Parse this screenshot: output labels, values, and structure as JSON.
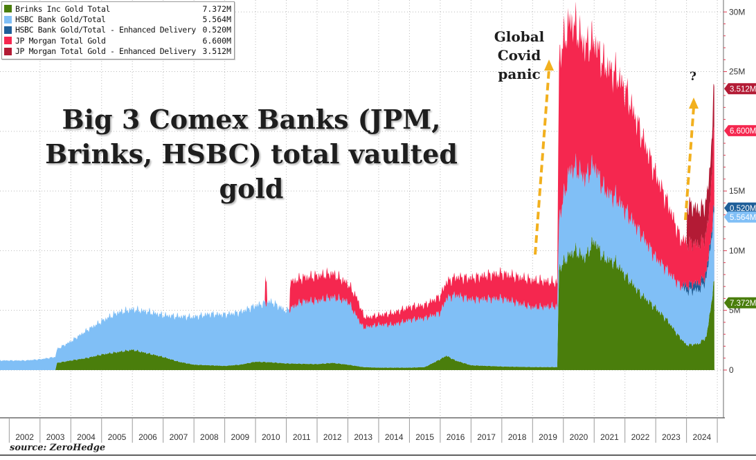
{
  "chart_data": {
    "type": "area",
    "title": "Big 3 Comex Banks (JPM, Brinks, HSBC) total vaulted gold",
    "source": "source: ZeroHedge",
    "stacked": true,
    "x_unit": "year",
    "x_range": [
      2001.7,
      2025.2
    ],
    "ylim": [
      -4000000,
      31000000
    ],
    "grid": true,
    "legend_placement": "top-left",
    "x_tick_labels": [
      "2002",
      "2003",
      "2004",
      "2005",
      "2006",
      "2007",
      "2008",
      "2009",
      "2010",
      "2011",
      "2012",
      "2013",
      "2014",
      "2015",
      "2016",
      "2017",
      "2018",
      "2019",
      "2020",
      "2021",
      "2022",
      "2023",
      "2024"
    ],
    "y_ticks": [
      {
        "value": 0,
        "label": "0"
      },
      {
        "value": 5000000,
        "label": "5M"
      },
      {
        "value": 10000000,
        "label": "10M"
      },
      {
        "value": 15000000,
        "label": "15M"
      },
      {
        "value": 25000000,
        "label": "25M"
      },
      {
        "value": 30000000,
        "label": "30M"
      }
    ],
    "series": [
      {
        "name": "Brinks Inc Gold Total",
        "latest_label": "7.372M",
        "latest_value": 7372000,
        "color": "#4a7e0c",
        "points": [
          [
            2003.5,
            0
          ],
          [
            2003.55,
            600000
          ],
          [
            2004,
            800000
          ],
          [
            2004.5,
            1000000
          ],
          [
            2005,
            1300000
          ],
          [
            2005.5,
            1500000
          ],
          [
            2006,
            1700000
          ],
          [
            2006.5,
            1400000
          ],
          [
            2007,
            1100000
          ],
          [
            2007.5,
            700000
          ],
          [
            2008,
            450000
          ],
          [
            2009,
            350000
          ],
          [
            2009.5,
            450000
          ],
          [
            2010,
            700000
          ],
          [
            2010.5,
            650000
          ],
          [
            2011,
            550000
          ],
          [
            2012,
            500000
          ],
          [
            2012.5,
            600000
          ],
          [
            2013,
            450000
          ],
          [
            2013.5,
            250000
          ],
          [
            2014,
            200000
          ],
          [
            2015,
            200000
          ],
          [
            2015.5,
            250000
          ],
          [
            2016,
            900000
          ],
          [
            2016.2,
            1200000
          ],
          [
            2016.5,
            800000
          ],
          [
            2017,
            400000
          ],
          [
            2018,
            300000
          ],
          [
            2019,
            250000
          ],
          [
            2019.8,
            250000
          ],
          [
            2019.86,
            8500000
          ],
          [
            2020.2,
            9700000
          ],
          [
            2020.4,
            10000000
          ],
          [
            2020.7,
            9400000
          ],
          [
            2021,
            10900000
          ],
          [
            2021.3,
            9400000
          ],
          [
            2021.7,
            9000000
          ],
          [
            2022,
            8000000
          ],
          [
            2022.5,
            6400000
          ],
          [
            2023,
            5200000
          ],
          [
            2023.4,
            4100000
          ],
          [
            2023.7,
            3000000
          ],
          [
            2024,
            2100000
          ],
          [
            2024.4,
            2200000
          ],
          [
            2024.65,
            2800000
          ],
          [
            2024.9,
            7372000
          ]
        ]
      },
      {
        "name": "HSBC Bank Gold/Total",
        "latest_label": "5.564M",
        "latest_value": 5564000,
        "color": "#80bff6",
        "points": [
          [
            2001.7,
            800000
          ],
          [
            2002.5,
            800000
          ],
          [
            2003,
            900000
          ],
          [
            2003.5,
            1100000
          ],
          [
            2004,
            1600000
          ],
          [
            2004.5,
            2300000
          ],
          [
            2005,
            2800000
          ],
          [
            2005.5,
            3300000
          ],
          [
            2006,
            3400000
          ],
          [
            2006.5,
            3500000
          ],
          [
            2007,
            3500000
          ],
          [
            2007.5,
            3800000
          ],
          [
            2008,
            4000000
          ],
          [
            2008.5,
            4300000
          ],
          [
            2009,
            4300000
          ],
          [
            2009.5,
            4400000
          ],
          [
            2010,
            4700000
          ],
          [
            2010.5,
            5100000
          ],
          [
            2011,
            4400000
          ],
          [
            2011.5,
            5200000
          ],
          [
            2012,
            5300000
          ],
          [
            2012.5,
            5500000
          ],
          [
            2013,
            5300000
          ],
          [
            2013.5,
            3300000
          ],
          [
            2014,
            3600000
          ],
          [
            2014.5,
            3600000
          ],
          [
            2015,
            4000000
          ],
          [
            2015.5,
            4100000
          ],
          [
            2016,
            3900000
          ],
          [
            2016.2,
            4800000
          ],
          [
            2016.5,
            5500000
          ],
          [
            2017,
            5500000
          ],
          [
            2018,
            5700000
          ],
          [
            2019,
            5000000
          ],
          [
            2019.8,
            5100000
          ],
          [
            2019.86,
            4200000
          ],
          [
            2020.2,
            7000000
          ],
          [
            2020.5,
            6900000
          ],
          [
            2021,
            6300000
          ],
          [
            2021.5,
            5500000
          ],
          [
            2022,
            5400000
          ],
          [
            2022.5,
            5100000
          ],
          [
            2023,
            4200000
          ],
          [
            2023.5,
            4200000
          ],
          [
            2024,
            4500000
          ],
          [
            2024.5,
            4500000
          ],
          [
            2024.9,
            5564000
          ]
        ]
      },
      {
        "name": "HSBC Bank Gold/Total - Enhanced Delivery",
        "latest_label": "0.520M",
        "latest_value": 520000,
        "color": "#1f5f99",
        "points": [
          [
            2023.85,
            0
          ],
          [
            2023.9,
            350000
          ],
          [
            2024.2,
            600000
          ],
          [
            2024.5,
            550000
          ],
          [
            2024.9,
            520000
          ]
        ]
      },
      {
        "name": "JP Morgan Total Gold",
        "latest_label": "6.600M",
        "latest_value": 6600000,
        "color": "#f5274f",
        "points": [
          [
            2010.3,
            0
          ],
          [
            2010.32,
            2200000
          ],
          [
            2010.36,
            2200000
          ],
          [
            2010.38,
            0
          ],
          [
            2011.1,
            0
          ],
          [
            2011.12,
            2200000
          ],
          [
            2011.5,
            2000000
          ],
          [
            2012,
            2100000
          ],
          [
            2012.5,
            2000000
          ],
          [
            2013,
            1500000
          ],
          [
            2013.3,
            1600000
          ],
          [
            2013.6,
            800000
          ],
          [
            2014,
            800000
          ],
          [
            2014.5,
            1000000
          ],
          [
            2015,
            1100000
          ],
          [
            2015.5,
            1100000
          ],
          [
            2016,
            1400000
          ],
          [
            2016.3,
            1400000
          ],
          [
            2016.5,
            1500000
          ],
          [
            2017,
            1800000
          ],
          [
            2017.5,
            2000000
          ],
          [
            2018,
            2100000
          ],
          [
            2018.5,
            2200000
          ],
          [
            2019,
            2300000
          ],
          [
            2019.8,
            2000000
          ],
          [
            2019.86,
            13500000
          ],
          [
            2020.2,
            12500000
          ],
          [
            2020.5,
            11500000
          ],
          [
            2021,
            10400000
          ],
          [
            2021.5,
            10500000
          ],
          [
            2022,
            10200000
          ],
          [
            2022.5,
            8500000
          ],
          [
            2023,
            7000000
          ],
          [
            2023.5,
            5300000
          ],
          [
            2023.8,
            4000000
          ],
          [
            2024,
            3600000
          ],
          [
            2024.3,
            3300000
          ],
          [
            2024.6,
            3200000
          ],
          [
            2024.75,
            3300000
          ],
          [
            2024.9,
            6600000
          ]
        ]
      },
      {
        "name": "JP Morgan Total Gold - Enhanced Delivery",
        "latest_label": "3.512M",
        "latest_value": 3512000,
        "color": "#b31b35",
        "points": [
          [
            2024.0,
            0
          ],
          [
            2024.02,
            3200000
          ],
          [
            2024.3,
            3000000
          ],
          [
            2024.6,
            2700000
          ],
          [
            2024.8,
            3000000
          ],
          [
            2024.9,
            3512000
          ]
        ]
      }
    ],
    "annotations": [
      {
        "text_lines": [
          "Global",
          "Covid",
          "panic"
        ]
      },
      {
        "text": "?"
      }
    ]
  }
}
